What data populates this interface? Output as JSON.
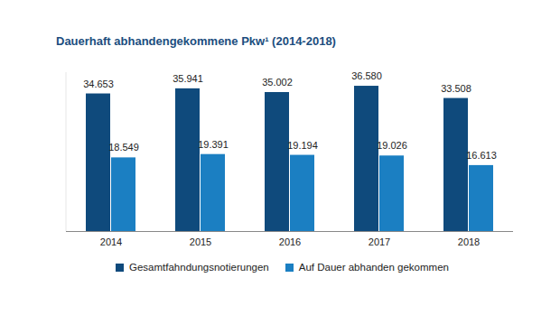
{
  "chart_data": {
    "type": "bar",
    "title": "Dauerhaft abhandengekommene Pkw¹ (2014-2018)",
    "categories": [
      "2014",
      "2015",
      "2016",
      "2017",
      "2018"
    ],
    "series": [
      {
        "name": "Gesamtfahndungsnotierungen",
        "color": "#0f4a7c",
        "values": [
          34653,
          35941,
          35002,
          36580,
          33508
        ],
        "value_labels": [
          "34.653",
          "35.941",
          "35.002",
          "36.580",
          "33.508"
        ]
      },
      {
        "name": "Auf Dauer abhanden gekommen",
        "color": "#1b7fc2",
        "values": [
          18549,
          19391,
          19194,
          19026,
          16613
        ],
        "value_labels": [
          "18.549",
          "19.391",
          "19.194",
          "19.026",
          "16.613"
        ]
      }
    ],
    "ylim": [
      0,
      40000
    ],
    "grid": false,
    "data_labels": true,
    "tick_labels": "x",
    "legend": "bottom"
  }
}
